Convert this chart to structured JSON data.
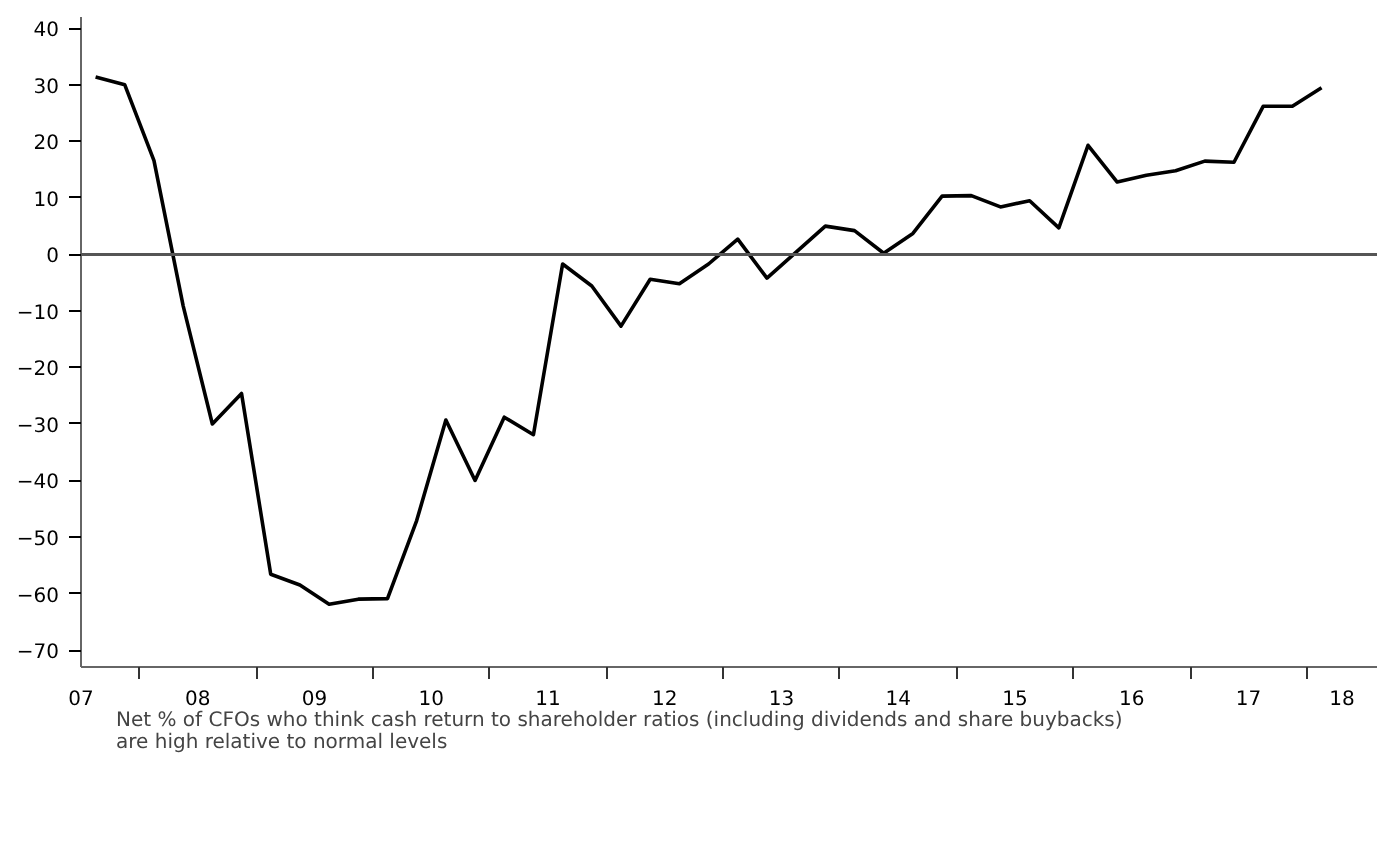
{
  "chart_data": {
    "type": "line",
    "x": [
      7.625,
      7.875,
      8.125,
      8.375,
      8.625,
      8.875,
      9.125,
      9.375,
      9.625,
      9.875,
      10.125,
      10.375,
      10.625,
      10.875,
      11.125,
      11.375,
      11.625,
      11.875,
      12.125,
      12.375,
      12.625,
      12.875,
      13.125,
      13.375,
      13.625,
      13.875,
      14.125,
      14.375,
      14.625,
      14.875,
      15.125,
      15.375,
      15.625,
      15.875,
      16.125,
      16.375,
      16.625,
      16.875,
      17.125,
      17.375,
      17.625,
      17.875,
      18.125
    ],
    "series": [
      {
        "name": "Net % of CFOs who think cash return to shareholder ratios (including dividends and share buybacks) are high relative to normal levels",
        "color": "#000000",
        "values": [
          31.4,
          30.0,
          16.6,
          -9.1,
          -30.0,
          -24.6,
          -56.6,
          -58.5,
          -61.9,
          -61.0,
          -60.9,
          -47.1,
          -29.3,
          -40.0,
          -28.8,
          -31.9,
          -1.7,
          -5.6,
          -12.7,
          -4.4,
          -5.2,
          -1.7,
          2.7,
          -4.2,
          0.4,
          5.0,
          4.2,
          0.2,
          3.7,
          10.3,
          10.4,
          8.4,
          9.5,
          4.7,
          19.3,
          12.8,
          14.0,
          14.8,
          16.5,
          16.3,
          26.2,
          26.2,
          29.5
        ]
      }
    ],
    "xlim": [
      7.5,
      18.6
    ],
    "xticks": [
      {
        "value": 7.5,
        "label": "07"
      },
      {
        "value": 8,
        "label": null
      },
      {
        "value": 8.5,
        "label": "08"
      },
      {
        "value": 9,
        "label": null
      },
      {
        "value": 9.5,
        "label": "09"
      },
      {
        "value": 10,
        "label": null
      },
      {
        "value": 10.5,
        "label": "10"
      },
      {
        "value": 11,
        "label": null
      },
      {
        "value": 11.5,
        "label": "11"
      },
      {
        "value": 12,
        "label": null
      },
      {
        "value": 12.5,
        "label": "12"
      },
      {
        "value": 13,
        "label": null
      },
      {
        "value": 13.5,
        "label": "13"
      },
      {
        "value": 14,
        "label": null
      },
      {
        "value": 14.5,
        "label": "14"
      },
      {
        "value": 15,
        "label": null
      },
      {
        "value": 15.5,
        "label": "15"
      },
      {
        "value": 16,
        "label": null
      },
      {
        "value": 16.5,
        "label": "16"
      },
      {
        "value": 17,
        "label": null
      },
      {
        "value": 17.5,
        "label": "17"
      },
      {
        "value": 18,
        "label": null
      },
      {
        "value": 18.3,
        "label": "18"
      }
    ],
    "ylim": [
      -73,
      42
    ],
    "yticks": [
      -70,
      -60,
      -50,
      -40,
      -30,
      -20,
      -10,
      0,
      10,
      20,
      30,
      40
    ],
    "ref_lines": [
      {
        "axis": "y",
        "value": 0,
        "color": "#555555"
      }
    ],
    "legend": "bottom",
    "line_style": "solid"
  }
}
